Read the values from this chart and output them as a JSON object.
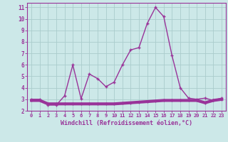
{
  "xlabel": "Windchill (Refroidissement éolien,°C)",
  "x": [
    0,
    1,
    2,
    3,
    4,
    5,
    6,
    7,
    8,
    9,
    10,
    11,
    12,
    13,
    14,
    15,
    16,
    17,
    18,
    19,
    20,
    21,
    22,
    23
  ],
  "line1": [
    3.0,
    3.0,
    2.5,
    2.5,
    3.3,
    6.0,
    3.05,
    5.2,
    4.8,
    4.1,
    4.5,
    6.0,
    7.3,
    7.5,
    9.6,
    11.0,
    10.2,
    6.8,
    4.0,
    3.1,
    3.0,
    3.1,
    2.9,
    3.1
  ],
  "line2": [
    2.9,
    2.9,
    2.6,
    2.6,
    2.6,
    2.6,
    2.6,
    2.6,
    2.6,
    2.6,
    2.6,
    2.65,
    2.7,
    2.75,
    2.8,
    2.85,
    2.9,
    2.9,
    2.9,
    2.9,
    2.9,
    2.7,
    2.9,
    3.0
  ],
  "line1_color": "#993399",
  "line2_color": "#993399",
  "bg_color": "#cce8e8",
  "grid_color": "#aacccc",
  "xlim": [
    -0.5,
    23.5
  ],
  "ylim": [
    2,
    11.4
  ],
  "yticks": [
    2,
    3,
    4,
    5,
    6,
    7,
    8,
    9,
    10,
    11
  ],
  "xticks": [
    0,
    1,
    2,
    3,
    4,
    5,
    6,
    7,
    8,
    9,
    10,
    11,
    12,
    13,
    14,
    15,
    16,
    17,
    18,
    19,
    20,
    21,
    22,
    23
  ],
  "tick_color": "#993399",
  "label_color": "#993399",
  "axis_color": "#993399"
}
